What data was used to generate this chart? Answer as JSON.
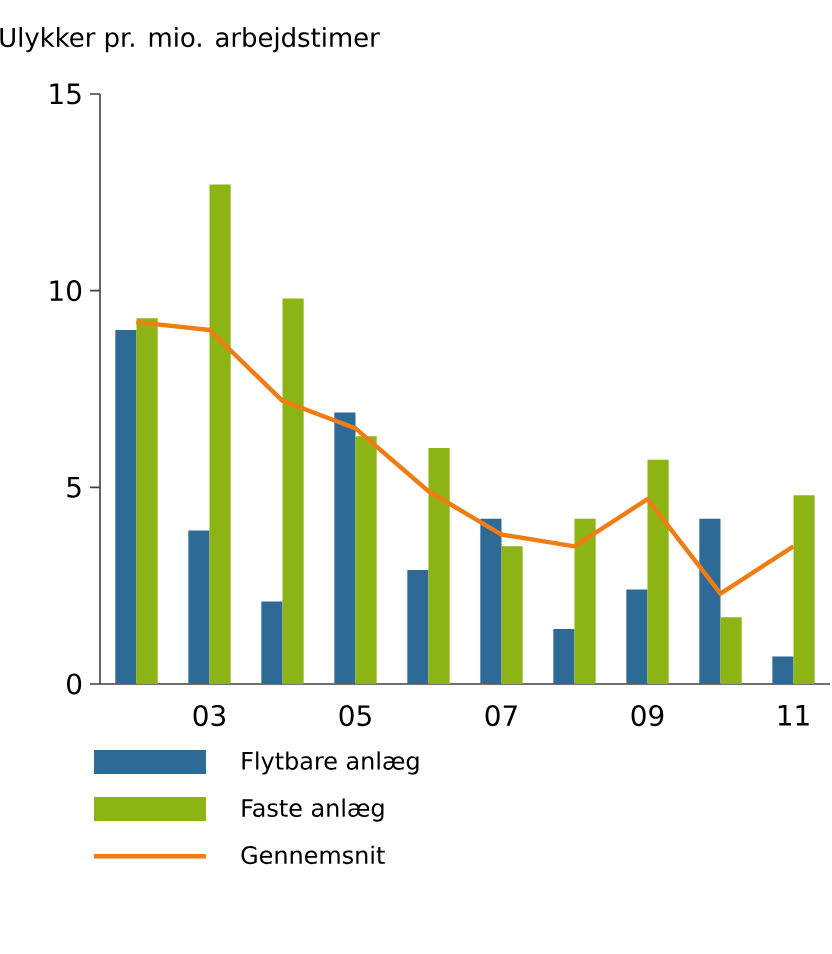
{
  "chart_data": {
    "type": "bar",
    "title": "Ulykker pr. mio. arbejdstimer",
    "categories": [
      null,
      "03",
      null,
      "05",
      null,
      "07",
      null,
      "09",
      null,
      "11"
    ],
    "series": [
      {
        "name": "Flytbare anlæg",
        "color": "#2e6a96",
        "values": [
          9.0,
          3.9,
          2.1,
          6.9,
          2.9,
          4.2,
          1.4,
          2.4,
          4.2,
          0.7
        ]
      },
      {
        "name": "Faste anlæg",
        "color": "#8cb414",
        "values": [
          9.3,
          12.7,
          9.8,
          6.3,
          6.0,
          3.5,
          4.2,
          5.7,
          1.7,
          4.8
        ]
      },
      {
        "name": "Gennemsnit",
        "type": "line",
        "color": "#f07d14",
        "values": [
          9.2,
          9.0,
          7.2,
          6.5,
          4.9,
          3.8,
          3.5,
          4.7,
          2.3,
          3.5
        ]
      }
    ],
    "ylim": [
      0,
      15
    ],
    "yticks": [
      0,
      5,
      10,
      15
    ],
    "legend": "bottom"
  }
}
